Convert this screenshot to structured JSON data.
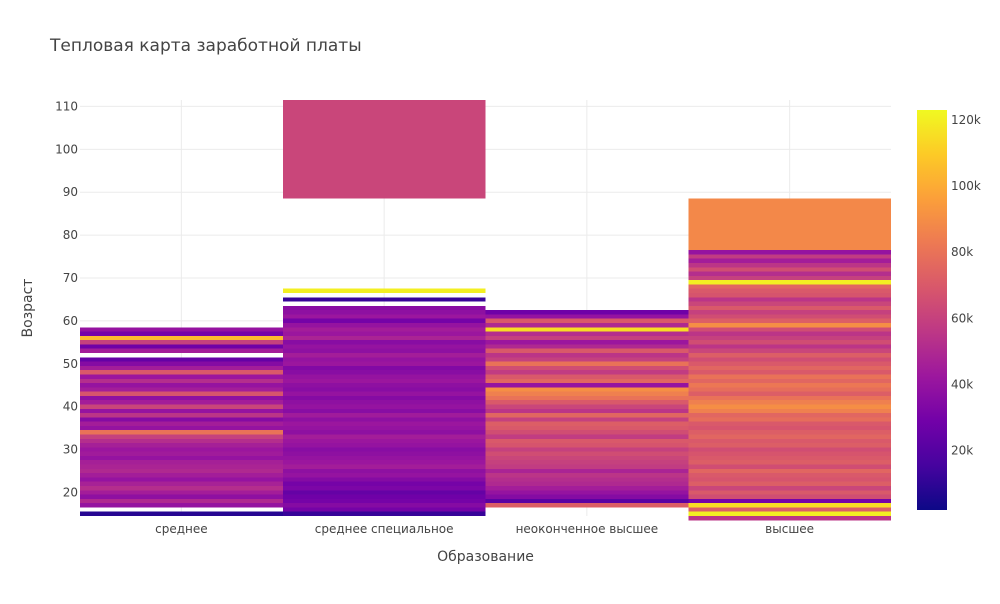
{
  "chart_data": {
    "type": "heatmap",
    "title": "Тепловая карта заработной платы",
    "xlabel": "Образование",
    "ylabel": "Возраст",
    "categories": [
      "среднее",
      "среднее специальное",
      "неоконченное высшее",
      "высшее"
    ],
    "ylim": [
      14.5,
      111.5
    ],
    "yticks": [
      20,
      30,
      40,
      50,
      60,
      70,
      80,
      90,
      100,
      110
    ],
    "colorbar": {
      "range": [
        2000,
        123000
      ],
      "ticks": [
        20000,
        40000,
        60000,
        80000,
        100000,
        120000
      ],
      "ticklabels": [
        "20k",
        "40k",
        "60k",
        "80k",
        "100k",
        "120k"
      ]
    },
    "colorscale": [
      "#0d0887",
      "#46039f",
      "#7201a8",
      "#9c179e",
      "#bd3786",
      "#d8576b",
      "#ed7953",
      "#fb9f3a",
      "#fdca26",
      "#f0f921"
    ],
    "grid": true,
    "series": [
      {
        "category": "среднее",
        "bands": [
          [
            14.5,
            15.5,
            8000
          ],
          [
            16.5,
            17.5,
            40000
          ],
          [
            17.5,
            18.5,
            50000
          ],
          [
            18.5,
            19.5,
            38000
          ],
          [
            19.5,
            20.5,
            45000
          ],
          [
            20.5,
            21.5,
            52000
          ],
          [
            21.5,
            22.5,
            47000
          ],
          [
            22.5,
            23.5,
            40000
          ],
          [
            23.5,
            24.5,
            45000
          ],
          [
            24.5,
            25.5,
            50000
          ],
          [
            25.5,
            26.5,
            48000
          ],
          [
            26.5,
            27.5,
            46000
          ],
          [
            27.5,
            28.5,
            40000
          ],
          [
            28.5,
            29.5,
            44000
          ],
          [
            29.5,
            30.5,
            42000
          ],
          [
            30.5,
            31.5,
            46000
          ],
          [
            31.5,
            32.5,
            52000
          ],
          [
            32.5,
            33.5,
            60000
          ],
          [
            33.5,
            34.5,
            80000
          ],
          [
            34.5,
            35.5,
            40000
          ],
          [
            35.5,
            36.5,
            45000
          ],
          [
            36.5,
            37.5,
            35000
          ],
          [
            37.5,
            38.5,
            55000
          ],
          [
            38.5,
            39.5,
            40000
          ],
          [
            39.5,
            40.5,
            62000
          ],
          [
            40.5,
            41.5,
            45000
          ],
          [
            41.5,
            42.5,
            38000
          ],
          [
            42.5,
            43.5,
            68000
          ],
          [
            43.5,
            44.5,
            45000
          ],
          [
            44.5,
            45.5,
            40000
          ],
          [
            45.5,
            46.5,
            52000
          ],
          [
            46.5,
            47.5,
            42000
          ],
          [
            47.5,
            48.5,
            70000
          ],
          [
            48.5,
            49.5,
            45000
          ],
          [
            49.5,
            50.5,
            35000
          ],
          [
            50.5,
            51.5,
            25000
          ],
          [
            52.5,
            53.5,
            45000
          ],
          [
            53.5,
            54.5,
            28000
          ],
          [
            54.5,
            55.5,
            60000
          ],
          [
            55.5,
            56.5,
            105000
          ],
          [
            56.5,
            57.5,
            30000
          ],
          [
            57.5,
            58.5,
            40000
          ]
        ]
      },
      {
        "category": "среднее специальное",
        "bands": [
          [
            14.5,
            15.5,
            12000
          ],
          [
            15.5,
            16.5,
            30000
          ],
          [
            16.5,
            17.5,
            35000
          ],
          [
            17.5,
            18.5,
            30000
          ],
          [
            18.5,
            19.5,
            28000
          ],
          [
            19.5,
            20.5,
            25000
          ],
          [
            20.5,
            21.5,
            32000
          ],
          [
            21.5,
            22.5,
            30000
          ],
          [
            22.5,
            23.5,
            35000
          ],
          [
            23.5,
            24.5,
            40000
          ],
          [
            24.5,
            25.5,
            38000
          ],
          [
            25.5,
            26.5,
            45000
          ],
          [
            26.5,
            27.5,
            42000
          ],
          [
            27.5,
            28.5,
            40000
          ],
          [
            28.5,
            29.5,
            38000
          ],
          [
            29.5,
            30.5,
            36000
          ],
          [
            30.5,
            31.5,
            40000
          ],
          [
            31.5,
            32.5,
            42000
          ],
          [
            32.5,
            33.5,
            45000
          ],
          [
            33.5,
            34.5,
            38000
          ],
          [
            34.5,
            35.5,
            40000
          ],
          [
            35.5,
            36.5,
            42000
          ],
          [
            36.5,
            37.5,
            38000
          ],
          [
            37.5,
            38.5,
            44000
          ],
          [
            38.5,
            39.5,
            36000
          ],
          [
            39.5,
            40.5,
            40000
          ],
          [
            40.5,
            41.5,
            38000
          ],
          [
            41.5,
            42.5,
            35000
          ],
          [
            42.5,
            43.5,
            40000
          ],
          [
            43.5,
            44.5,
            36000
          ],
          [
            44.5,
            45.5,
            38000
          ],
          [
            45.5,
            46.5,
            42000
          ],
          [
            46.5,
            47.5,
            40000
          ],
          [
            47.5,
            48.5,
            36000
          ],
          [
            48.5,
            49.5,
            34000
          ],
          [
            49.5,
            50.5,
            42000
          ],
          [
            50.5,
            51.5,
            40000
          ],
          [
            51.5,
            52.5,
            45000
          ],
          [
            52.5,
            53.5,
            38000
          ],
          [
            53.5,
            54.5,
            40000
          ],
          [
            54.5,
            55.5,
            36000
          ],
          [
            55.5,
            56.5,
            48000
          ],
          [
            56.5,
            57.5,
            42000
          ],
          [
            57.5,
            58.5,
            45000
          ],
          [
            58.5,
            59.5,
            40000
          ],
          [
            59.5,
            60.5,
            30000
          ],
          [
            60.5,
            61.5,
            42000
          ],
          [
            61.5,
            62.5,
            38000
          ],
          [
            62.5,
            63.5,
            36000
          ],
          [
            64.5,
            65.5,
            12000
          ],
          [
            66.5,
            67.5,
            120000
          ],
          [
            88.5,
            111.5,
            62000
          ]
        ]
      },
      {
        "category": "неоконченное высшее",
        "bands": [
          [
            16.5,
            17.5,
            72000
          ],
          [
            17.5,
            18.5,
            22000
          ],
          [
            18.5,
            19.5,
            35000
          ],
          [
            19.5,
            20.5,
            40000
          ],
          [
            20.5,
            21.5,
            45000
          ],
          [
            21.5,
            22.5,
            50000
          ],
          [
            22.5,
            23.5,
            52000
          ],
          [
            23.5,
            24.5,
            55000
          ],
          [
            24.5,
            25.5,
            48000
          ],
          [
            25.5,
            26.5,
            58000
          ],
          [
            26.5,
            27.5,
            60000
          ],
          [
            27.5,
            28.5,
            62000
          ],
          [
            28.5,
            29.5,
            65000
          ],
          [
            29.5,
            30.5,
            60000
          ],
          [
            30.5,
            31.5,
            68000
          ],
          [
            31.5,
            32.5,
            70000
          ],
          [
            32.5,
            33.5,
            58000
          ],
          [
            33.5,
            34.5,
            65000
          ],
          [
            34.5,
            35.5,
            70000
          ],
          [
            35.5,
            36.5,
            72000
          ],
          [
            36.5,
            37.5,
            60000
          ],
          [
            37.5,
            38.5,
            75000
          ],
          [
            38.5,
            39.5,
            55000
          ],
          [
            39.5,
            40.5,
            62000
          ],
          [
            40.5,
            41.5,
            70000
          ],
          [
            41.5,
            42.5,
            80000
          ],
          [
            42.5,
            43.5,
            85000
          ],
          [
            43.5,
            44.5,
            90000
          ],
          [
            44.5,
            45.5,
            40000
          ],
          [
            45.5,
            46.5,
            75000
          ],
          [
            46.5,
            47.5,
            70000
          ],
          [
            47.5,
            48.5,
            58000
          ],
          [
            48.5,
            49.5,
            65000
          ],
          [
            49.5,
            50.5,
            80000
          ],
          [
            50.5,
            51.5,
            60000
          ],
          [
            51.5,
            52.5,
            55000
          ],
          [
            52.5,
            53.5,
            70000
          ],
          [
            53.5,
            54.5,
            50000
          ],
          [
            54.5,
            55.5,
            42000
          ],
          [
            55.5,
            56.5,
            60000
          ],
          [
            56.5,
            57.5,
            52000
          ],
          [
            57.5,
            58.5,
            115000
          ],
          [
            58.5,
            59.5,
            50000
          ],
          [
            59.5,
            60.5,
            70000
          ],
          [
            60.5,
            61.5,
            40000
          ],
          [
            61.5,
            62.5,
            28000
          ]
        ]
      },
      {
        "category": "высшее",
        "bands": [
          [
            13.5,
            14.5,
            55000
          ],
          [
            14.5,
            15.5,
            120000
          ],
          [
            15.5,
            16.5,
            72000
          ],
          [
            16.5,
            17.5,
            115000
          ],
          [
            17.5,
            18.5,
            30000
          ],
          [
            18.5,
            19.5,
            65000
          ],
          [
            19.5,
            20.5,
            70000
          ],
          [
            20.5,
            21.5,
            62000
          ],
          [
            21.5,
            22.5,
            72000
          ],
          [
            22.5,
            23.5,
            68000
          ],
          [
            23.5,
            24.5,
            70000
          ],
          [
            24.5,
            25.5,
            75000
          ],
          [
            25.5,
            26.5,
            65000
          ],
          [
            26.5,
            27.5,
            72000
          ],
          [
            27.5,
            28.5,
            70000
          ],
          [
            28.5,
            29.5,
            68000
          ],
          [
            29.5,
            30.5,
            65000
          ],
          [
            30.5,
            31.5,
            72000
          ],
          [
            31.5,
            32.5,
            70000
          ],
          [
            32.5,
            33.5,
            75000
          ],
          [
            33.5,
            34.5,
            72000
          ],
          [
            34.5,
            35.5,
            68000
          ],
          [
            35.5,
            36.5,
            70000
          ],
          [
            36.5,
            37.5,
            78000
          ],
          [
            37.5,
            38.5,
            75000
          ],
          [
            38.5,
            39.5,
            85000
          ],
          [
            39.5,
            40.5,
            90000
          ],
          [
            40.5,
            41.5,
            85000
          ],
          [
            41.5,
            42.5,
            80000
          ],
          [
            42.5,
            43.5,
            72000
          ],
          [
            43.5,
            44.5,
            78000
          ],
          [
            44.5,
            45.5,
            82000
          ],
          [
            45.5,
            46.5,
            75000
          ],
          [
            46.5,
            47.5,
            80000
          ],
          [
            47.5,
            48.5,
            70000
          ],
          [
            48.5,
            49.5,
            75000
          ],
          [
            49.5,
            50.5,
            70000
          ],
          [
            50.5,
            51.5,
            65000
          ],
          [
            51.5,
            52.5,
            72000
          ],
          [
            52.5,
            53.5,
            62000
          ],
          [
            53.5,
            54.5,
            55000
          ],
          [
            54.5,
            55.5,
            65000
          ],
          [
            55.5,
            56.5,
            60000
          ],
          [
            56.5,
            57.5,
            55000
          ],
          [
            57.5,
            58.5,
            65000
          ],
          [
            58.5,
            59.5,
            90000
          ],
          [
            59.5,
            60.5,
            72000
          ],
          [
            60.5,
            61.5,
            65000
          ],
          [
            61.5,
            62.5,
            60000
          ],
          [
            62.5,
            63.5,
            70000
          ],
          [
            63.5,
            64.5,
            62000
          ],
          [
            64.5,
            65.5,
            55000
          ],
          [
            65.5,
            66.5,
            68000
          ],
          [
            66.5,
            67.5,
            70000
          ],
          [
            67.5,
            68.5,
            75000
          ],
          [
            68.5,
            69.5,
            120000
          ],
          [
            69.5,
            70.5,
            60000
          ],
          [
            70.5,
            71.5,
            52000
          ],
          [
            71.5,
            72.5,
            65000
          ],
          [
            72.5,
            73.5,
            55000
          ],
          [
            73.5,
            74.5,
            45000
          ],
          [
            74.5,
            75.5,
            58000
          ],
          [
            75.5,
            76.5,
            40000
          ],
          [
            76.5,
            88.5,
            88000
          ]
        ]
      }
    ]
  }
}
